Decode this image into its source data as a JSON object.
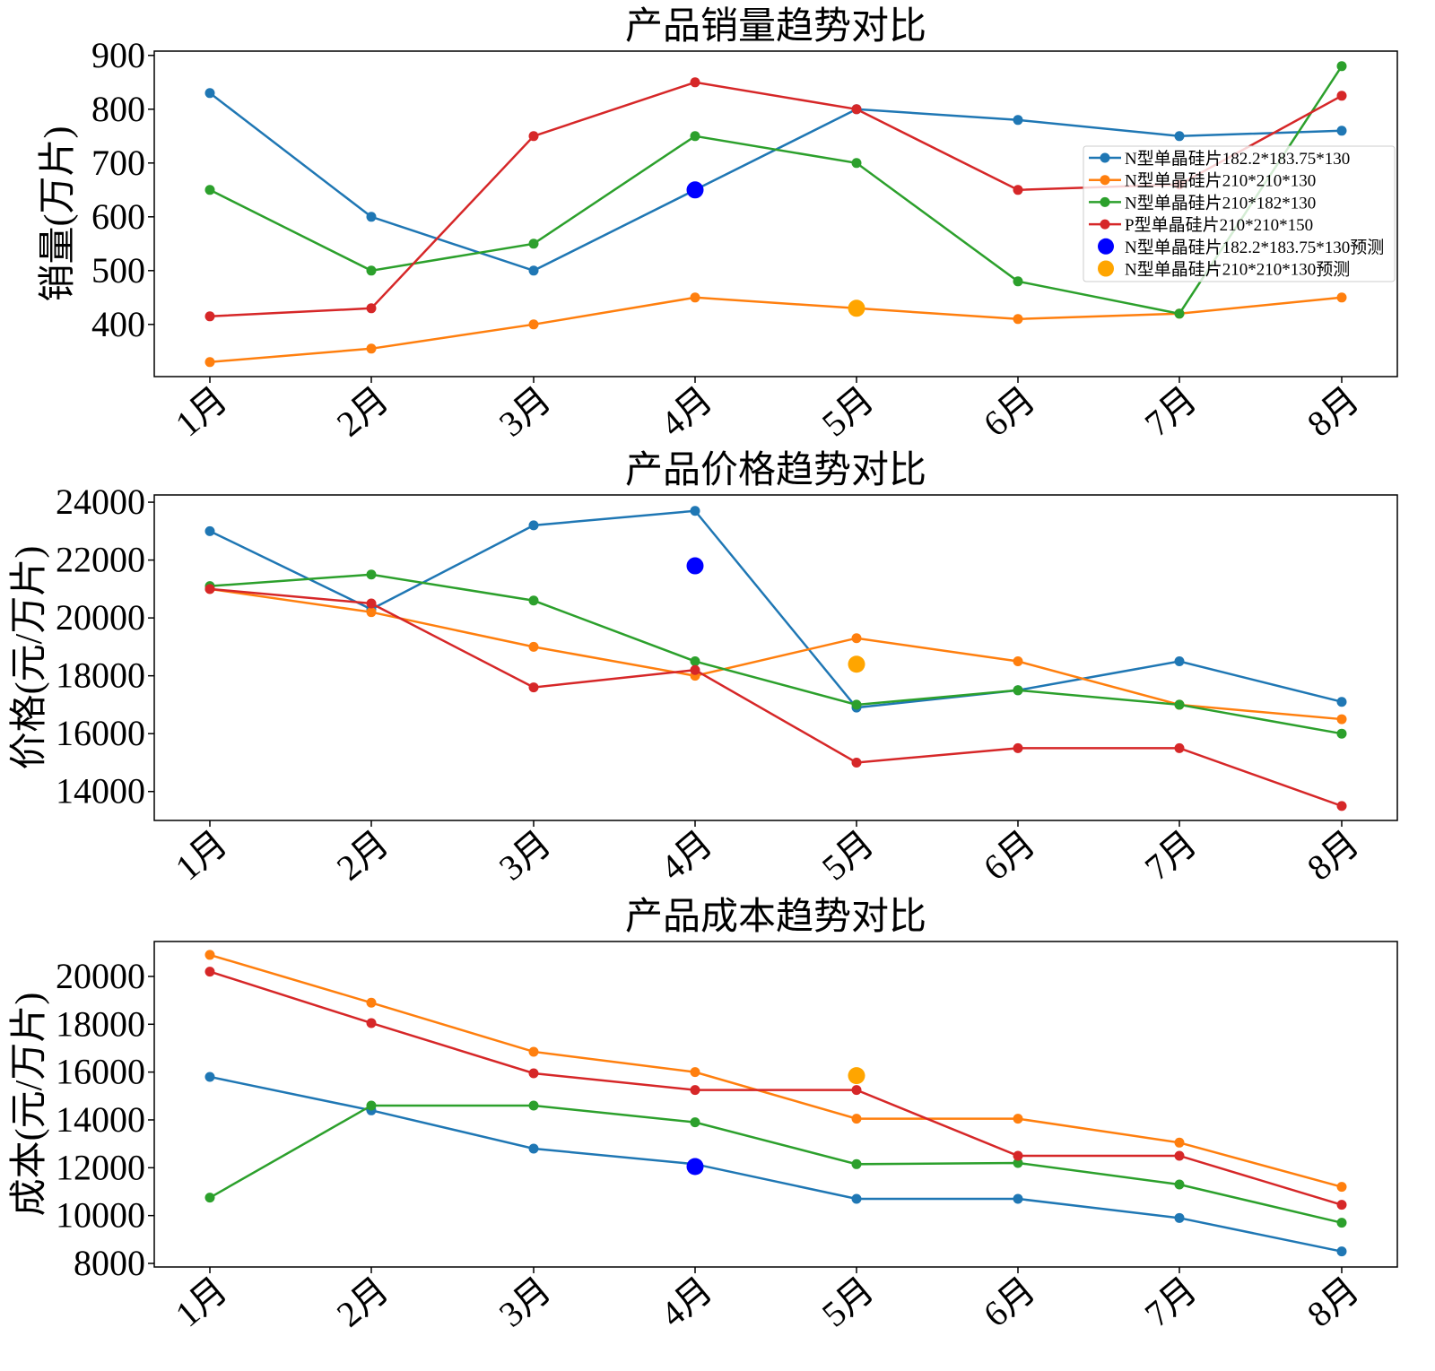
{
  "colors": {
    "blue": "#1f77b4",
    "orange": "#ff7f0e",
    "green": "#2ca02c",
    "red": "#d62728",
    "pred_blue": "#0000ff",
    "pred_orange": "#ffa500"
  },
  "chart_data": [
    {
      "type": "line",
      "title": "产品销量趋势对比",
      "ylabel": "销量(万片)",
      "xlabel": "",
      "categories": [
        "1月",
        "2月",
        "3月",
        "4月",
        "5月",
        "6月",
        "7月",
        "8月"
      ],
      "ylim": [
        303,
        908
      ],
      "yticks": [
        400,
        500,
        600,
        700,
        800,
        900
      ],
      "grid": false,
      "legend": "right",
      "series": [
        {
          "name": "N型单晶硅片182.2*183.75*130",
          "color": "#1f77b4",
          "values": [
            830,
            600,
            500,
            650,
            800,
            780,
            750,
            760
          ]
        },
        {
          "name": "N型单晶硅片210*210*130",
          "color": "#ff7f0e",
          "values": [
            330,
            355,
            400,
            450,
            430,
            410,
            420,
            450
          ]
        },
        {
          "name": "N型单晶硅片210*182*130",
          "color": "#2ca02c",
          "values": [
            650,
            500,
            550,
            750,
            700,
            480,
            420,
            880
          ]
        },
        {
          "name": "P型单晶硅片210*210*150",
          "color": "#d62728",
          "values": [
            415,
            430,
            750,
            850,
            800,
            650,
            660,
            825
          ]
        }
      ],
      "predictions": [
        {
          "name": "N型单晶硅片182.2*183.75*130预测",
          "color": "#0000ff",
          "category": "4月",
          "value": 650
        },
        {
          "name": "N型单晶硅片210*210*130预测",
          "color": "#ffa500",
          "category": "5月",
          "value": 430
        }
      ]
    },
    {
      "type": "line",
      "title": "产品价格趋势对比",
      "ylabel": "价格(元/万片)",
      "xlabel": "",
      "categories": [
        "1月",
        "2月",
        "3月",
        "4月",
        "5月",
        "6月",
        "7月",
        "8月"
      ],
      "ylim": [
        13000,
        24250
      ],
      "yticks": [
        14000,
        16000,
        18000,
        20000,
        22000,
        24000
      ],
      "grid": false,
      "series": [
        {
          "color": "#1f77b4",
          "values": [
            23000,
            20300,
            23200,
            23700,
            16900,
            17500,
            18500,
            17100
          ]
        },
        {
          "color": "#ff7f0e",
          "values": [
            21000,
            20200,
            19000,
            18000,
            19300,
            18500,
            17000,
            16500
          ]
        },
        {
          "color": "#2ca02c",
          "values": [
            21100,
            21500,
            20600,
            18500,
            17000,
            17500,
            17000,
            16000
          ]
        },
        {
          "color": "#d62728",
          "values": [
            21000,
            20500,
            17600,
            18200,
            15000,
            15500,
            15500,
            13500
          ]
        }
      ],
      "predictions": [
        {
          "color": "#0000ff",
          "category": "4月",
          "value": 21800
        },
        {
          "color": "#ffa500",
          "category": "5月",
          "value": 18400
        }
      ]
    },
    {
      "type": "line",
      "title": "产品成本趋势对比",
      "ylabel": "成本(元/万片)",
      "xlabel": "",
      "categories": [
        "1月",
        "2月",
        "3月",
        "4月",
        "5月",
        "6月",
        "7月",
        "8月"
      ],
      "ylim": [
        7850,
        21460
      ],
      "yticks": [
        8000,
        10000,
        12000,
        14000,
        16000,
        18000,
        20000
      ],
      "grid": false,
      "series": [
        {
          "color": "#1f77b4",
          "values": [
            15800,
            14400,
            12800,
            12150,
            10700,
            10700,
            9900,
            8500
          ]
        },
        {
          "color": "#ff7f0e",
          "values": [
            20900,
            18900,
            16850,
            16000,
            14050,
            14050,
            13050,
            11200
          ]
        },
        {
          "color": "#2ca02c",
          "values": [
            10750,
            14600,
            14600,
            13900,
            12150,
            12200,
            11300,
            9700
          ]
        },
        {
          "color": "#d62728",
          "values": [
            20200,
            18050,
            15950,
            15250,
            15250,
            12500,
            12500,
            10450
          ]
        }
      ],
      "predictions": [
        {
          "color": "#0000ff",
          "category": "4月",
          "value": 12050
        },
        {
          "color": "#ffa500",
          "category": "5月",
          "value": 15850
        }
      ]
    }
  ]
}
